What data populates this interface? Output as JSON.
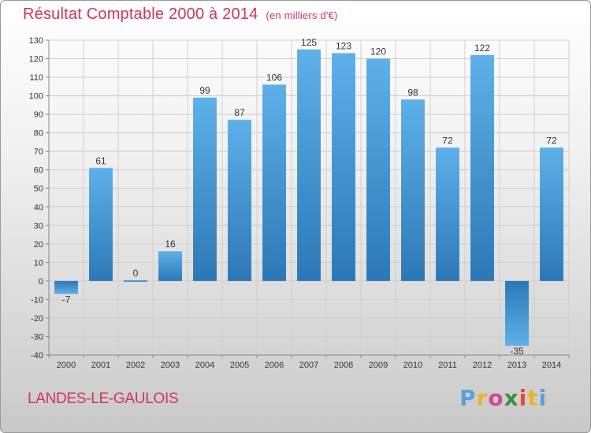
{
  "header": {
    "title": "Résultat Comptable 2000 à 2014",
    "unit": "(en milliers d'€)"
  },
  "footer": {
    "commune": "LANDES-LE-GAULOIS",
    "logo_letters": [
      "P",
      "r",
      "o",
      "x",
      "i",
      "t",
      "i"
    ],
    "logo_colors": [
      "#5aa0d8",
      "#e8b52a",
      "#d24a8c",
      "#3e8e3e",
      "#e84a35",
      "#e8b52a",
      "#5aa0d8"
    ]
  },
  "colors": {
    "bar_light": "#5eb0ea",
    "bar_dark": "#2c78b6",
    "text": "#333333",
    "grid": "#d0d0d0",
    "accent": "#d1345c"
  },
  "chart_data": {
    "type": "bar",
    "categories": [
      "2000",
      "2001",
      "2002",
      "2003",
      "2004",
      "2005",
      "2006",
      "2007",
      "2008",
      "2009",
      "2010",
      "2011",
      "2012",
      "2013",
      "2014"
    ],
    "values": [
      -7,
      61,
      0,
      16,
      99,
      87,
      106,
      125,
      123,
      120,
      98,
      72,
      122,
      -35,
      72
    ],
    "data_labels": [
      "-7",
      "61",
      "0",
      "16",
      "99",
      "87",
      "106",
      "125",
      "123",
      "120",
      "98",
      "72",
      "122",
      "-35",
      "72"
    ],
    "title": "Résultat Comptable 2000 à 2014",
    "ylim": [
      -40,
      130
    ],
    "yticks": [
      130,
      120,
      110,
      100,
      90,
      80,
      70,
      60,
      50,
      40,
      30,
      20,
      10,
      0,
      -10,
      -20,
      -30,
      -40
    ],
    "grid": true,
    "legend": "none"
  }
}
